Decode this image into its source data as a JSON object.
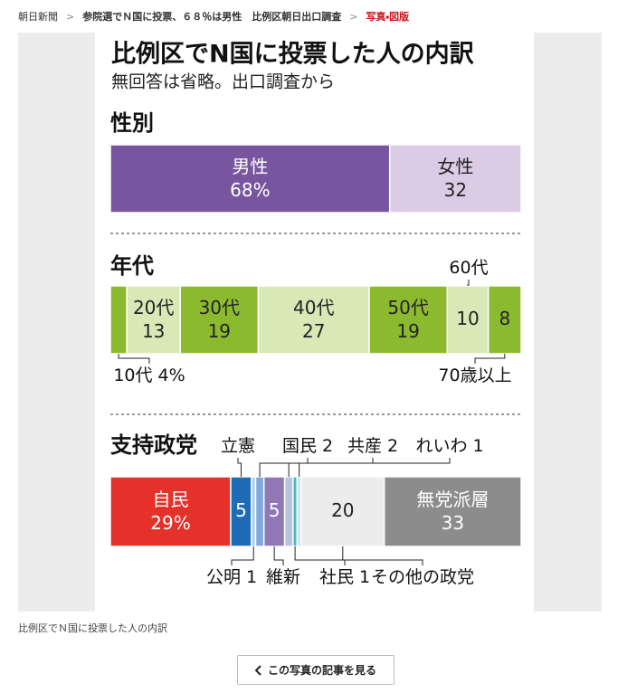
{
  "breadcrumb": [
    "朝日新聞",
    "参院選でＮ国に投票、６８％は男性　比例区朝日出口調査",
    "写真・図版"
  ],
  "figure": {
    "title": "比例区でN国に投票した人の内訳",
    "subtitle": "無回答は省略。出口調査から"
  },
  "chart_data": [
    {
      "type": "stacked-bar",
      "title": "性別",
      "categories": [
        "男性",
        "女性"
      ],
      "values": [
        68,
        32
      ],
      "value_labels": [
        "68%",
        "32"
      ],
      "colors": [
        "#77559f",
        "#dccbe5"
      ]
    },
    {
      "type": "stacked-bar",
      "title": "年代",
      "categories": [
        "10代",
        "20代",
        "30代",
        "40代",
        "50代",
        "60代",
        "70歳以上"
      ],
      "values": [
        4,
        13,
        19,
        27,
        19,
        10,
        8
      ],
      "value_labels": [
        "4%",
        "13",
        "19",
        "27",
        "19",
        "10",
        "8"
      ],
      "colors": [
        "#8cba2e",
        "#d8e8b7",
        "#8cba2e",
        "#d8e8b7",
        "#8cba2e",
        "#d8e8b7",
        "#8cba2e"
      ]
    },
    {
      "type": "stacked-bar",
      "title": "支持政党",
      "categories": [
        "自民",
        "立憲",
        "公明",
        "国民",
        "維新",
        "共産",
        "社民",
        "れいわ",
        "その他の政党",
        "無党派層"
      ],
      "values": [
        29,
        5,
        1,
        2,
        5,
        2,
        1,
        1,
        20,
        33
      ],
      "value_labels": [
        "29%",
        "5",
        "1",
        "2",
        "5",
        "2",
        "1",
        "1",
        "20",
        "33"
      ],
      "colors": [
        "#e5312a",
        "#1f6cb6",
        "#a8cfee",
        "#7fa8dc",
        "#8f78b6",
        "#b6c4e2",
        "#4db6c4",
        "#cfe6e6",
        "#ececec",
        "#8c8c8c"
      ]
    }
  ],
  "caption": "比例区でＮ国に投票した人の内訳",
  "button": "この写真の記事を見る"
}
